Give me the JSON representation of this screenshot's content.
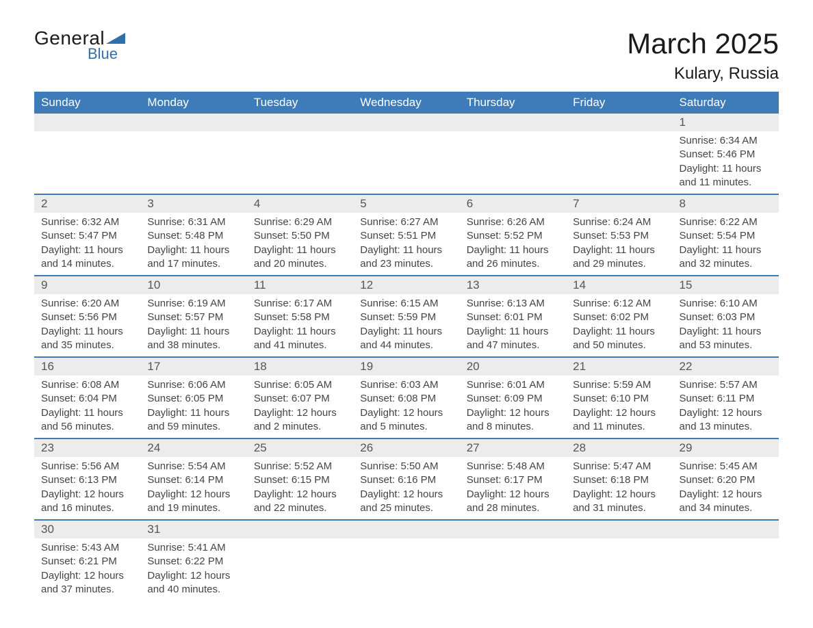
{
  "brand": {
    "name_top": "General",
    "name_bottom": "Blue",
    "triangle_color": "#2f6fab"
  },
  "title": "March 2025",
  "location": "Kulary, Russia",
  "colors": {
    "header_bg": "#3d7cb8",
    "header_text": "#ffffff",
    "daynum_bg": "#ececec",
    "row_border": "#3d7cb8",
    "text": "#444444",
    "background": "#ffffff"
  },
  "weekdays": [
    "Sunday",
    "Monday",
    "Tuesday",
    "Wednesday",
    "Thursday",
    "Friday",
    "Saturday"
  ],
  "weeks": [
    [
      {
        "n": "",
        "lines": [
          "",
          "",
          "",
          ""
        ]
      },
      {
        "n": "",
        "lines": [
          "",
          "",
          "",
          ""
        ]
      },
      {
        "n": "",
        "lines": [
          "",
          "",
          "",
          ""
        ]
      },
      {
        "n": "",
        "lines": [
          "",
          "",
          "",
          ""
        ]
      },
      {
        "n": "",
        "lines": [
          "",
          "",
          "",
          ""
        ]
      },
      {
        "n": "",
        "lines": [
          "",
          "",
          "",
          ""
        ]
      },
      {
        "n": "1",
        "lines": [
          "Sunrise: 6:34 AM",
          "Sunset: 5:46 PM",
          "Daylight: 11 hours",
          "and 11 minutes."
        ]
      }
    ],
    [
      {
        "n": "2",
        "lines": [
          "Sunrise: 6:32 AM",
          "Sunset: 5:47 PM",
          "Daylight: 11 hours",
          "and 14 minutes."
        ]
      },
      {
        "n": "3",
        "lines": [
          "Sunrise: 6:31 AM",
          "Sunset: 5:48 PM",
          "Daylight: 11 hours",
          "and 17 minutes."
        ]
      },
      {
        "n": "4",
        "lines": [
          "Sunrise: 6:29 AM",
          "Sunset: 5:50 PM",
          "Daylight: 11 hours",
          "and 20 minutes."
        ]
      },
      {
        "n": "5",
        "lines": [
          "Sunrise: 6:27 AM",
          "Sunset: 5:51 PM",
          "Daylight: 11 hours",
          "and 23 minutes."
        ]
      },
      {
        "n": "6",
        "lines": [
          "Sunrise: 6:26 AM",
          "Sunset: 5:52 PM",
          "Daylight: 11 hours",
          "and 26 minutes."
        ]
      },
      {
        "n": "7",
        "lines": [
          "Sunrise: 6:24 AM",
          "Sunset: 5:53 PM",
          "Daylight: 11 hours",
          "and 29 minutes."
        ]
      },
      {
        "n": "8",
        "lines": [
          "Sunrise: 6:22 AM",
          "Sunset: 5:54 PM",
          "Daylight: 11 hours",
          "and 32 minutes."
        ]
      }
    ],
    [
      {
        "n": "9",
        "lines": [
          "Sunrise: 6:20 AM",
          "Sunset: 5:56 PM",
          "Daylight: 11 hours",
          "and 35 minutes."
        ]
      },
      {
        "n": "10",
        "lines": [
          "Sunrise: 6:19 AM",
          "Sunset: 5:57 PM",
          "Daylight: 11 hours",
          "and 38 minutes."
        ]
      },
      {
        "n": "11",
        "lines": [
          "Sunrise: 6:17 AM",
          "Sunset: 5:58 PM",
          "Daylight: 11 hours",
          "and 41 minutes."
        ]
      },
      {
        "n": "12",
        "lines": [
          "Sunrise: 6:15 AM",
          "Sunset: 5:59 PM",
          "Daylight: 11 hours",
          "and 44 minutes."
        ]
      },
      {
        "n": "13",
        "lines": [
          "Sunrise: 6:13 AM",
          "Sunset: 6:01 PM",
          "Daylight: 11 hours",
          "and 47 minutes."
        ]
      },
      {
        "n": "14",
        "lines": [
          "Sunrise: 6:12 AM",
          "Sunset: 6:02 PM",
          "Daylight: 11 hours",
          "and 50 minutes."
        ]
      },
      {
        "n": "15",
        "lines": [
          "Sunrise: 6:10 AM",
          "Sunset: 6:03 PM",
          "Daylight: 11 hours",
          "and 53 minutes."
        ]
      }
    ],
    [
      {
        "n": "16",
        "lines": [
          "Sunrise: 6:08 AM",
          "Sunset: 6:04 PM",
          "Daylight: 11 hours",
          "and 56 minutes."
        ]
      },
      {
        "n": "17",
        "lines": [
          "Sunrise: 6:06 AM",
          "Sunset: 6:05 PM",
          "Daylight: 11 hours",
          "and 59 minutes."
        ]
      },
      {
        "n": "18",
        "lines": [
          "Sunrise: 6:05 AM",
          "Sunset: 6:07 PM",
          "Daylight: 12 hours",
          "and 2 minutes."
        ]
      },
      {
        "n": "19",
        "lines": [
          "Sunrise: 6:03 AM",
          "Sunset: 6:08 PM",
          "Daylight: 12 hours",
          "and 5 minutes."
        ]
      },
      {
        "n": "20",
        "lines": [
          "Sunrise: 6:01 AM",
          "Sunset: 6:09 PM",
          "Daylight: 12 hours",
          "and 8 minutes."
        ]
      },
      {
        "n": "21",
        "lines": [
          "Sunrise: 5:59 AM",
          "Sunset: 6:10 PM",
          "Daylight: 12 hours",
          "and 11 minutes."
        ]
      },
      {
        "n": "22",
        "lines": [
          "Sunrise: 5:57 AM",
          "Sunset: 6:11 PM",
          "Daylight: 12 hours",
          "and 13 minutes."
        ]
      }
    ],
    [
      {
        "n": "23",
        "lines": [
          "Sunrise: 5:56 AM",
          "Sunset: 6:13 PM",
          "Daylight: 12 hours",
          "and 16 minutes."
        ]
      },
      {
        "n": "24",
        "lines": [
          "Sunrise: 5:54 AM",
          "Sunset: 6:14 PM",
          "Daylight: 12 hours",
          "and 19 minutes."
        ]
      },
      {
        "n": "25",
        "lines": [
          "Sunrise: 5:52 AM",
          "Sunset: 6:15 PM",
          "Daylight: 12 hours",
          "and 22 minutes."
        ]
      },
      {
        "n": "26",
        "lines": [
          "Sunrise: 5:50 AM",
          "Sunset: 6:16 PM",
          "Daylight: 12 hours",
          "and 25 minutes."
        ]
      },
      {
        "n": "27",
        "lines": [
          "Sunrise: 5:48 AM",
          "Sunset: 6:17 PM",
          "Daylight: 12 hours",
          "and 28 minutes."
        ]
      },
      {
        "n": "28",
        "lines": [
          "Sunrise: 5:47 AM",
          "Sunset: 6:18 PM",
          "Daylight: 12 hours",
          "and 31 minutes."
        ]
      },
      {
        "n": "29",
        "lines": [
          "Sunrise: 5:45 AM",
          "Sunset: 6:20 PM",
          "Daylight: 12 hours",
          "and 34 minutes."
        ]
      }
    ],
    [
      {
        "n": "30",
        "lines": [
          "Sunrise: 5:43 AM",
          "Sunset: 6:21 PM",
          "Daylight: 12 hours",
          "and 37 minutes."
        ]
      },
      {
        "n": "31",
        "lines": [
          "Sunrise: 5:41 AM",
          "Sunset: 6:22 PM",
          "Daylight: 12 hours",
          "and 40 minutes."
        ]
      },
      {
        "n": "",
        "lines": [
          "",
          "",
          "",
          ""
        ]
      },
      {
        "n": "",
        "lines": [
          "",
          "",
          "",
          ""
        ]
      },
      {
        "n": "",
        "lines": [
          "",
          "",
          "",
          ""
        ]
      },
      {
        "n": "",
        "lines": [
          "",
          "",
          "",
          ""
        ]
      },
      {
        "n": "",
        "lines": [
          "",
          "",
          "",
          ""
        ]
      }
    ]
  ]
}
